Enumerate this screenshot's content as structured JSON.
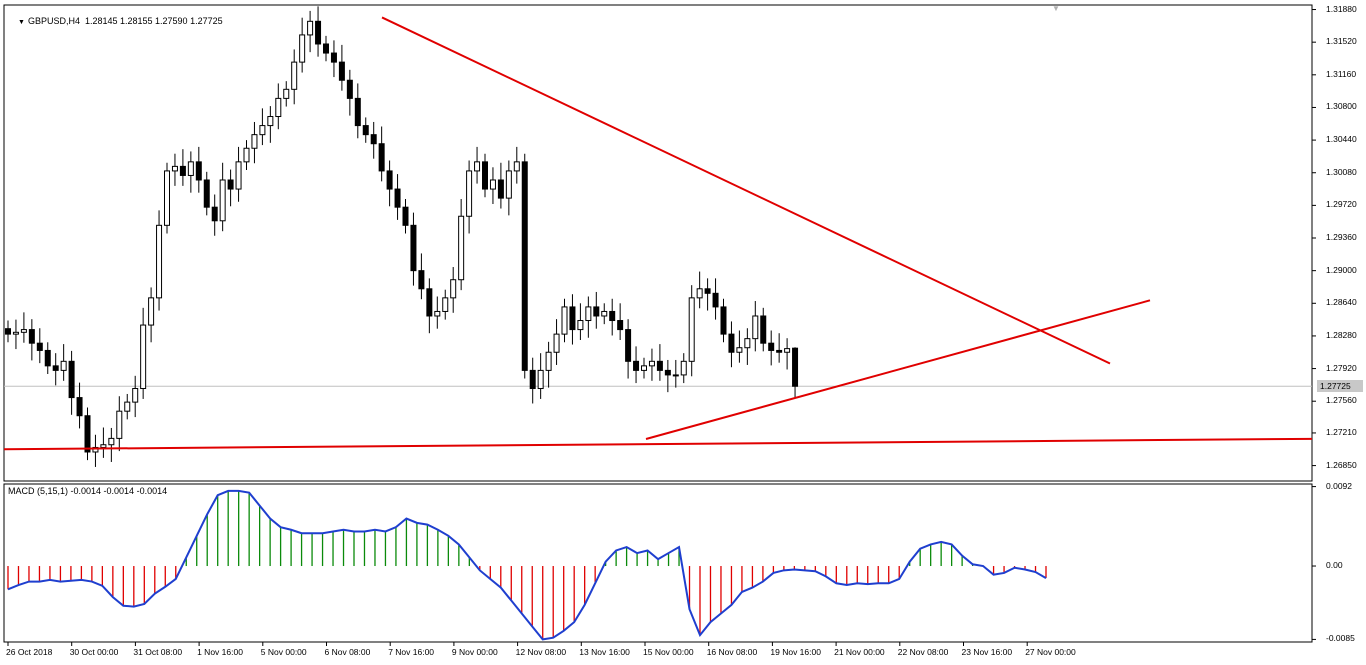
{
  "window": {
    "symbol_line": "GBPUSD,H4  1.28145 1.28155 1.27590 1.27725",
    "menu_arrow": "caret-down-icon",
    "resize_mark": "triangle-down-icon"
  },
  "price_axis": {
    "ticks": [
      "1.31880",
      "1.31520",
      "1.31160",
      "1.30800",
      "1.30440",
      "1.30080",
      "1.29720",
      "1.29360",
      "1.29000",
      "1.28640",
      "1.28280",
      "1.27920",
      "1.27560",
      "1.27210",
      "1.26850"
    ],
    "current_price": "1.27725",
    "range": [
      1.2668,
      1.3193
    ]
  },
  "macd": {
    "label": "MACD (5,15,1) -0.0014 -0.0014 -0.0014",
    "ticks": [
      "0.0092",
      "0.00",
      "-0.0085"
    ],
    "range": [
      -0.0088,
      0.0095
    ]
  },
  "time_axis": [
    "26 Oct 2018",
    "30 Oct 00:00",
    "31 Oct 08:00",
    "1 Nov 16:00",
    "5 Nov 00:00",
    "6 Nov 08:00",
    "7 Nov 16:00",
    "9 Nov 00:00",
    "12 Nov 08:00",
    "13 Nov 16:00",
    "15 Nov 00:00",
    "16 Nov 08:00",
    "19 Nov 16:00",
    "21 Nov 00:00",
    "22 Nov 08:00",
    "23 Nov 16:00",
    "27 Nov 00:00"
  ],
  "colors": {
    "bull": "#ffffff",
    "bear": "#000000",
    "trendline": "#e00000",
    "macd_pos": "#0a8a0a",
    "macd_neg": "#e00000",
    "signal": "#1f3fcf",
    "grid_price": "#c0c0c0"
  },
  "chart_data": [
    {
      "type": "candlestick",
      "title": "GBPUSD,H4",
      "ohlc_last": {
        "open": 1.28145,
        "high": 1.28155,
        "low": 1.2759,
        "close": 1.27725
      },
      "close_series": [
        1.283,
        1.2832,
        1.2835,
        1.282,
        1.2812,
        1.2795,
        1.279,
        1.28,
        1.276,
        1.274,
        1.27,
        1.2705,
        1.2708,
        1.2715,
        1.2745,
        1.2755,
        1.277,
        1.284,
        1.287,
        1.295,
        1.301,
        1.3015,
        1.3005,
        1.302,
        1.3,
        1.297,
        1.2955,
        1.3,
        1.299,
        1.302,
        1.3035,
        1.305,
        1.306,
        1.307,
        1.309,
        1.31,
        1.313,
        1.316,
        1.3175,
        1.315,
        1.314,
        1.313,
        1.311,
        1.309,
        1.306,
        1.305,
        1.304,
        1.301,
        1.299,
        1.297,
        1.295,
        1.29,
        1.288,
        1.285,
        1.2855,
        1.287,
        1.289,
        1.296,
        1.301,
        1.302,
        1.299,
        1.3,
        1.298,
        1.301,
        1.302,
        1.279,
        1.277,
        1.279,
        1.281,
        1.283,
        1.286,
        1.2835,
        1.2845,
        1.286,
        1.285,
        1.2855,
        1.2845,
        1.2835,
        1.28,
        1.279,
        1.2795,
        1.28,
        1.279,
        1.2785,
        1.2785,
        1.28,
        1.287,
        1.288,
        1.2875,
        1.286,
        1.283,
        1.281,
        1.2815,
        1.2825,
        1.285,
        1.282,
        1.2812,
        1.281,
        1.2814,
        1.27725
      ],
      "trendlines": [
        {
          "name": "upper",
          "from": {
            "date": "7 Nov 16:00",
            "price": 1.3175
          },
          "to": {
            "date": "27 Nov 00:00",
            "price": 1.2841
          }
        },
        {
          "name": "lower",
          "from": {
            "date": "15 Nov 00:00",
            "price": 1.2714
          },
          "to": {
            "date": "27 Nov 00:00",
            "price": 1.283
          }
        },
        {
          "name": "support",
          "from": {
            "date": "26 Oct 2018",
            "price": 1.2703
          },
          "to": {
            "date": "27 Nov 00:00",
            "price": 1.2712
          }
        }
      ]
    },
    {
      "type": "bar",
      "title": "MACD (5,15,1)",
      "values": [
        -0.0027,
        -0.0022,
        -0.0018,
        -0.0018,
        -0.0016,
        -0.0018,
        -0.0017,
        -0.0016,
        -0.0018,
        -0.0023,
        -0.0036,
        -0.0046,
        -0.0047,
        -0.0044,
        -0.0032,
        -0.0024,
        -0.0015,
        0.001,
        0.0035,
        0.006,
        0.0082,
        0.0087,
        0.0087,
        0.0085,
        0.007,
        0.0055,
        0.0045,
        0.0042,
        0.0038,
        0.0038,
        0.0038,
        0.004,
        0.0042,
        0.004,
        0.004,
        0.0042,
        0.004,
        0.0045,
        0.0055,
        0.005,
        0.0048,
        0.0042,
        0.0035,
        0.0025,
        0.001,
        -0.0005,
        -0.0015,
        -0.0025,
        -0.004,
        -0.0055,
        -0.007,
        -0.0085,
        -0.0083,
        -0.0075,
        -0.0065,
        -0.0045,
        -0.002,
        0.0005,
        0.0018,
        0.0022,
        0.0015,
        0.0018,
        0.0008,
        0.0015,
        0.0022,
        -0.005,
        -0.008,
        -0.0065,
        -0.0055,
        -0.0045,
        -0.003,
        -0.0025,
        -0.0018,
        -0.0008,
        -0.0005,
        -0.0004,
        -0.0005,
        -0.0006,
        -0.0012,
        -0.002,
        -0.0022,
        -0.002,
        -0.0021,
        -0.002,
        -0.002,
        -0.0015,
        0.0005,
        0.002,
        0.0025,
        0.0028,
        0.0025,
        0.0012,
        0.0002,
        0.0,
        -0.001,
        -0.0008,
        -0.0002,
        -0.0004,
        -0.0007,
        -0.0014
      ]
    }
  ]
}
